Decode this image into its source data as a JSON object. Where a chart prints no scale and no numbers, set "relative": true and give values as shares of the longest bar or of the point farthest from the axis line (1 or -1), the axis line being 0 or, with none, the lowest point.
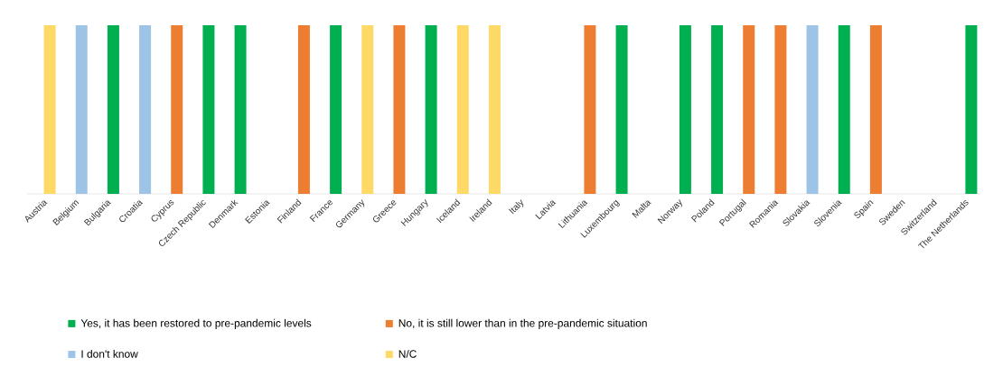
{
  "chart_data": {
    "type": "bar",
    "relative": true,
    "legend": "bottom",
    "categories": [
      "Austria",
      "Belgium",
      "Bulgaria",
      "Croatia",
      "Cyprus",
      "Czech Republic",
      "Denmark",
      "Estonia",
      "Finland",
      "France",
      "Germany",
      "Greece",
      "Hungary",
      "Iceland",
      "Ireland",
      "Italy",
      "Latvia",
      "Lithuania",
      "Luxembourg",
      "Malta",
      "Norway",
      "Poland",
      "Portugal",
      "Romania",
      "Slovakia",
      "Slovenia",
      "Spain",
      "Sweden",
      "Switzerland",
      "The Netherlands"
    ],
    "series": [
      {
        "name": "Yes, it has been restored to pre-pandemic levels",
        "color": "#00b050",
        "values": [
          null,
          null,
          1,
          null,
          null,
          1,
          1,
          null,
          null,
          1,
          null,
          null,
          1,
          null,
          null,
          null,
          null,
          null,
          1,
          null,
          1,
          1,
          null,
          null,
          null,
          1,
          null,
          null,
          null,
          1
        ]
      },
      {
        "name": "No, it is still lower than in the pre-pandemic situation",
        "color": "#ed7d31",
        "values": [
          null,
          null,
          null,
          null,
          1,
          null,
          null,
          null,
          1,
          null,
          null,
          1,
          null,
          null,
          null,
          null,
          null,
          1,
          null,
          null,
          null,
          null,
          1,
          1,
          null,
          null,
          1,
          null,
          null,
          null
        ]
      },
      {
        "name": "I don't know",
        "color": "#9dc3e6",
        "values": [
          null,
          1,
          null,
          1,
          null,
          null,
          null,
          null,
          null,
          null,
          null,
          null,
          null,
          null,
          null,
          null,
          null,
          null,
          null,
          null,
          null,
          null,
          null,
          null,
          1,
          null,
          null,
          null,
          null,
          null
        ]
      },
      {
        "name": "N/C",
        "color": "#ffd966",
        "values": [
          1,
          null,
          null,
          null,
          null,
          null,
          null,
          null,
          null,
          null,
          1,
          null,
          null,
          1,
          1,
          null,
          null,
          null,
          null,
          null,
          null,
          null,
          null,
          null,
          null,
          null,
          null,
          null,
          null,
          null
        ]
      }
    ]
  }
}
